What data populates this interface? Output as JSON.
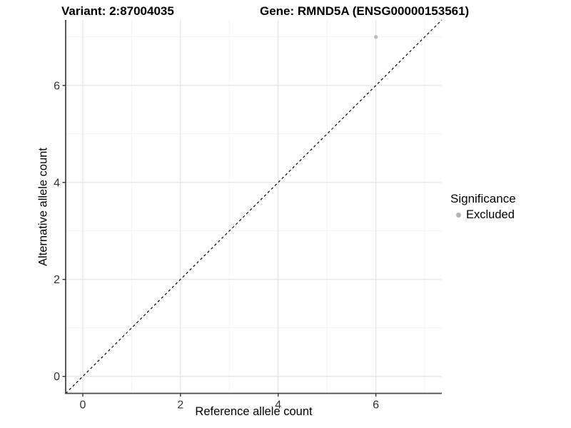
{
  "header": {
    "variant_title": "Variant: 2:87004035",
    "gene_title": "Gene: RMND5A (ENSG00000153561)"
  },
  "chart_data": {
    "type": "scatter",
    "title": "Variant: 2:87004035   Gene: RMND5A (ENSG00000153561)",
    "xlabel": "Reference allele count",
    "ylabel": "Alternative allele count",
    "xlim": [
      -0.35,
      7.35
    ],
    "ylim": [
      -0.35,
      7.35
    ],
    "x_major_ticks": [
      0,
      2,
      4,
      6
    ],
    "y_major_ticks": [
      0,
      2,
      4,
      6
    ],
    "x_minor_ticks": [
      1,
      3,
      5,
      7
    ],
    "y_minor_ticks": [
      1,
      3,
      5,
      7
    ],
    "grid": true,
    "points": [
      {
        "x": 6,
        "y": 7,
        "series": "Excluded",
        "color": "#bdbdbd"
      }
    ],
    "identity_line": {
      "from": [
        -0.35,
        -0.35
      ],
      "to": [
        7.35,
        7.35
      ],
      "style": "dashed",
      "color": "#000000"
    },
    "legend": {
      "title": "Significance",
      "position": "right",
      "items": [
        {
          "label": "Excluded",
          "color": "#b3b3b3"
        }
      ]
    },
    "colors": {
      "background": "#ffffff",
      "grid_major": "#e5e5e5",
      "grid_minor": "#f2f2f2",
      "axis_line": "#484848",
      "tick": "#333333",
      "point": "#bdbdbd"
    }
  }
}
